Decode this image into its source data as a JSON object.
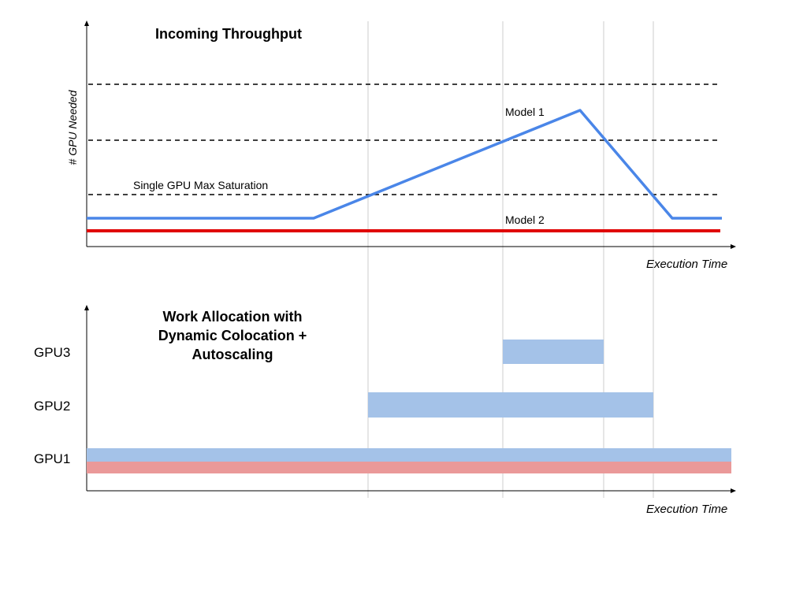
{
  "top_chart": {
    "title": "Incoming Throughput",
    "ylabel": "# GPU Needed",
    "xlabel": "Execution Time",
    "threshold_label": "Single GPU Max Saturation",
    "model1_label": "Model 1",
    "model2_label": "Model 2"
  },
  "bottom_chart": {
    "title_line1": "Work Allocation with",
    "title_line2": "Dynamic Colocation +",
    "title_line3": "Autoscaling",
    "xlabel": "Execution Time",
    "gpus": [
      {
        "label": "GPU3"
      },
      {
        "label": "GPU2"
      },
      {
        "label": "GPU1"
      }
    ]
  },
  "colors": {
    "model1": "#4a86e8",
    "model2": "#e00000",
    "bar_blue": "#a4c2e8",
    "bar_red": "#ea9999",
    "guide": "#cccccc",
    "threshold": "#000000"
  }
}
